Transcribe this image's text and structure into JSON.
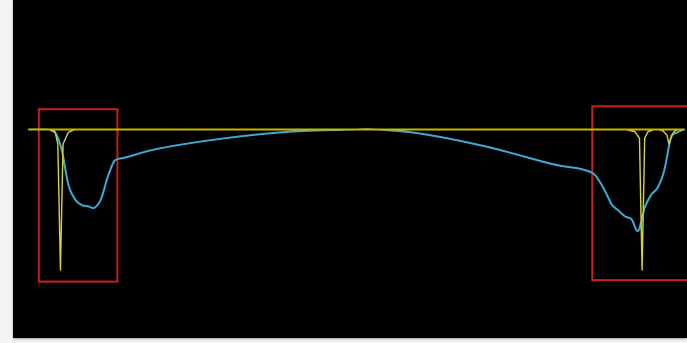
{
  "chart_data": {
    "type": "line",
    "title": "",
    "xlabel": "",
    "ylabel": "",
    "xlim": [
      0,
      100
    ],
    "ylim": [
      -100,
      10
    ],
    "grid": false,
    "legend": "none",
    "background": "#000000",
    "series": [
      {
        "color": "#c8b400",
        "style": "reference",
        "x": [
          0,
          100
        ],
        "y": [
          0,
          0
        ]
      },
      {
        "color": "#3fa9d6",
        "style": "profile",
        "x": [
          0,
          3,
          4,
          5,
          6,
          7,
          8,
          9,
          10,
          11,
          12,
          13,
          14,
          15,
          20,
          30,
          40,
          50,
          53,
          60,
          70,
          80,
          84,
          86,
          87,
          88,
          89,
          90,
          91,
          92,
          93,
          94,
          95,
          96,
          97,
          98,
          99,
          100
        ],
        "y": [
          0,
          0,
          -2,
          -14,
          -38,
          -48,
          -52,
          -53,
          -54,
          -48,
          -33,
          -22,
          -20,
          -19,
          -13,
          -6,
          -1.5,
          0,
          0,
          -3,
          -12,
          -24,
          -27,
          -30,
          -35,
          -43,
          -52,
          -56,
          -60,
          -62,
          -70,
          -54,
          -45,
          -40,
          -28,
          -6,
          -2,
          0
        ]
      },
      {
        "color": "#d6d23a",
        "style": "spike",
        "x": [
          3,
          4,
          4.4,
          4.8,
          5.2,
          6,
          7
        ],
        "y": [
          0,
          -2,
          -10,
          -97,
          -10,
          -2,
          0
        ]
      },
      {
        "color": "#d6d23a",
        "style": "spike",
        "x": [
          91,
          92.5,
          93.2,
          93.6,
          94,
          94.5,
          95.5
        ],
        "y": [
          0,
          -1.5,
          -6,
          -97,
          -6,
          -1.5,
          0
        ]
      },
      {
        "color": "#d6d23a",
        "style": "spike",
        "x": [
          96,
          96.8,
          97.4,
          97.7,
          98.1,
          98.6,
          99.2
        ],
        "y": [
          0,
          -1,
          -4,
          -10,
          -4,
          -1,
          0
        ]
      }
    ],
    "highlights": [
      {
        "color": "#c81e1e",
        "x_range": [
          1.5,
          13.5
        ],
        "y_range": [
          -105,
          14
        ]
      },
      {
        "color": "#c81e1e",
        "x_range": [
          86,
          103
        ],
        "y_range": [
          -104,
          16
        ]
      }
    ]
  }
}
